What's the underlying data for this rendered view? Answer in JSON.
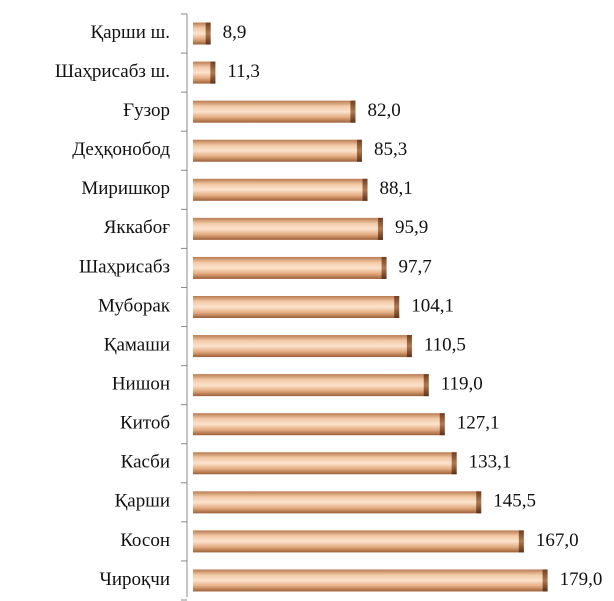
{
  "chart_data": {
    "type": "barh",
    "categories": [
      "Қарши ш.",
      "Шаҳрисабз ш.",
      "Ғузор",
      "Деҳқонобод",
      "Миришкор",
      "Яккабоғ",
      "Шаҳрисабз",
      "Муборак",
      "Қамаши",
      "Нишон",
      "Китоб",
      "Касби",
      "Қарши",
      "Косон",
      "Чироқчи"
    ],
    "values": [
      8.9,
      11.3,
      82.0,
      85.3,
      88.1,
      95.9,
      97.7,
      104.1,
      110.5,
      119.0,
      127.1,
      133.1,
      145.5,
      167.0,
      179.0
    ],
    "value_labels": [
      "8,9",
      "11,3",
      "82,0",
      "85,3",
      "88,1",
      "95,9",
      "97,7",
      "104,1",
      "110,5",
      "119,0",
      "127,1",
      "133,1",
      "145,5",
      "167,0",
      "179,0"
    ],
    "color": "#e9b48a",
    "xlim": [
      0,
      210
    ]
  }
}
